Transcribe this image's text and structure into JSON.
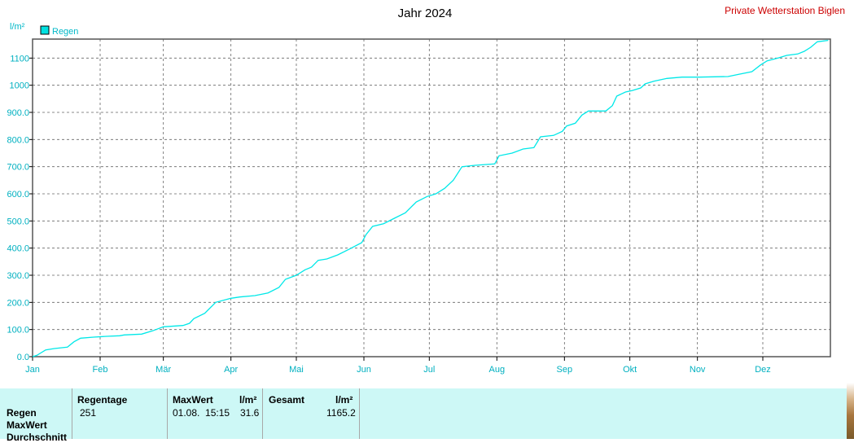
{
  "brand": "Private Wetterstation Biglen",
  "chart_data": {
    "type": "line",
    "title": "Jahr 2024",
    "ylabel": "l/m²",
    "ylim": [
      0,
      1170
    ],
    "yticks": [
      0,
      100,
      200,
      300,
      400,
      500,
      600,
      700,
      800,
      900,
      1000,
      1100
    ],
    "ytick_labels": [
      "0.0",
      "100.0",
      "200.0",
      "300.0",
      "400.0",
      "500.0",
      "600.0",
      "700.0",
      "800.0",
      "900.0",
      "1000",
      "1100"
    ],
    "xlim": [
      "2024-01-01",
      "2024-12-31"
    ],
    "xticks": [
      {
        "date": "2024-01-01",
        "label": "Jan"
      },
      {
        "date": "2024-02-01",
        "label": "Feb"
      },
      {
        "date": "2024-03-01",
        "label": "Mär"
      },
      {
        "date": "2024-04-01",
        "label": "Apr"
      },
      {
        "date": "2024-05-01",
        "label": "Mai"
      },
      {
        "date": "2024-06-01",
        "label": "Jun"
      },
      {
        "date": "2024-07-01",
        "label": "Jul"
      },
      {
        "date": "2024-08-01",
        "label": "Aug"
      },
      {
        "date": "2024-09-01",
        "label": "Sep"
      },
      {
        "date": "2024-10-01",
        "label": "Okt"
      },
      {
        "date": "2024-11-01",
        "label": "Nov"
      },
      {
        "date": "2024-12-01",
        "label": "Dez"
      }
    ],
    "grid": true,
    "legend": "top-left",
    "series": [
      {
        "name": "Regen",
        "color": "#00e8e8",
        "points": [
          [
            "2024-01-01",
            0
          ],
          [
            "2024-01-03",
            5
          ],
          [
            "2024-01-07",
            25
          ],
          [
            "2024-01-11",
            30
          ],
          [
            "2024-01-17",
            35
          ],
          [
            "2024-01-20",
            55
          ],
          [
            "2024-01-23",
            68
          ],
          [
            "2024-01-29",
            72
          ],
          [
            "2024-02-04",
            75
          ],
          [
            "2024-02-10",
            77
          ],
          [
            "2024-02-12",
            80
          ],
          [
            "2024-02-20",
            83
          ],
          [
            "2024-02-25",
            95
          ],
          [
            "2024-03-01",
            110
          ],
          [
            "2024-03-10",
            115
          ],
          [
            "2024-03-13",
            123
          ],
          [
            "2024-03-15",
            140
          ],
          [
            "2024-03-20",
            160
          ],
          [
            "2024-03-25",
            200
          ],
          [
            "2024-04-01",
            215
          ],
          [
            "2024-04-05",
            220
          ],
          [
            "2024-04-12",
            225
          ],
          [
            "2024-04-18",
            235
          ],
          [
            "2024-04-23",
            255
          ],
          [
            "2024-04-26",
            285
          ],
          [
            "2024-05-01",
            300
          ],
          [
            "2024-05-05",
            320
          ],
          [
            "2024-05-08",
            330
          ],
          [
            "2024-05-11",
            355
          ],
          [
            "2024-05-15",
            360
          ],
          [
            "2024-05-20",
            375
          ],
          [
            "2024-05-25",
            395
          ],
          [
            "2024-05-31",
            420
          ],
          [
            "2024-06-02",
            450
          ],
          [
            "2024-06-05",
            480
          ],
          [
            "2024-06-10",
            490
          ],
          [
            "2024-06-15",
            510
          ],
          [
            "2024-06-20",
            530
          ],
          [
            "2024-06-25",
            570
          ],
          [
            "2024-06-30",
            590
          ],
          [
            "2024-07-04",
            600
          ],
          [
            "2024-07-08",
            620
          ],
          [
            "2024-07-12",
            650
          ],
          [
            "2024-07-16",
            700
          ],
          [
            "2024-07-22",
            705
          ],
          [
            "2024-07-31",
            710
          ],
          [
            "2024-08-02",
            740
          ],
          [
            "2024-08-08",
            750
          ],
          [
            "2024-08-13",
            765
          ],
          [
            "2024-08-18",
            770
          ],
          [
            "2024-08-21",
            810
          ],
          [
            "2024-08-27",
            815
          ],
          [
            "2024-08-31",
            830
          ],
          [
            "2024-09-02",
            850
          ],
          [
            "2024-09-06",
            860
          ],
          [
            "2024-09-09",
            890
          ],
          [
            "2024-09-12",
            905
          ],
          [
            "2024-09-20",
            905
          ],
          [
            "2024-09-23",
            925
          ],
          [
            "2024-09-25",
            960
          ],
          [
            "2024-09-29",
            975
          ],
          [
            "2024-10-02",
            980
          ],
          [
            "2024-10-06",
            990
          ],
          [
            "2024-10-08",
            1005
          ],
          [
            "2024-10-12",
            1015
          ],
          [
            "2024-10-18",
            1025
          ],
          [
            "2024-10-25",
            1030
          ],
          [
            "2024-11-02",
            1030
          ],
          [
            "2024-11-15",
            1032
          ],
          [
            "2024-11-20",
            1040
          ],
          [
            "2024-11-26",
            1050
          ],
          [
            "2024-11-30",
            1075
          ],
          [
            "2024-12-03",
            1090
          ],
          [
            "2024-12-08",
            1100
          ],
          [
            "2024-12-12",
            1110
          ],
          [
            "2024-12-17",
            1115
          ],
          [
            "2024-12-20",
            1125
          ],
          [
            "2024-12-23",
            1140
          ],
          [
            "2024-12-26",
            1160
          ],
          [
            "2024-12-31",
            1165.2
          ]
        ]
      }
    ]
  },
  "summary": {
    "headers": {
      "regentage": "Regentage",
      "maxwert": "MaxWert",
      "maxwert_unit": "l/m²",
      "gesamt": "Gesamt",
      "gesamt_unit": "l/m²"
    },
    "row_labels": [
      "Regen",
      "MaxWert",
      "Durchschnitt"
    ],
    "regen": {
      "regentage": "251",
      "maxwert_time": "01.08.  15:15",
      "maxwert_value": "31.6",
      "gesamt": "1165.2"
    }
  }
}
